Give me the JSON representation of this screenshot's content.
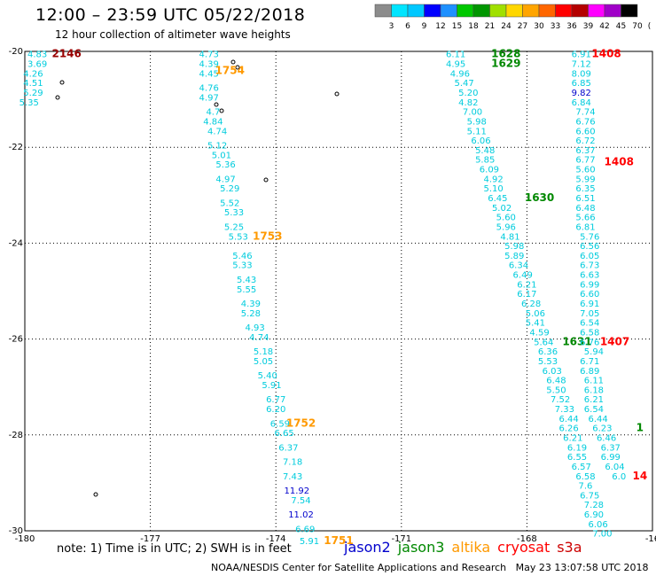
{
  "title": "12:00 – 23:59 UTC 05/22/2018",
  "subtitle": "12 hour collection of altimeter wave heights",
  "scale": {
    "colors": [
      "#8c8c8c",
      "#00e5ff",
      "#00c8ff",
      "#0000ff",
      "#1e90ff",
      "#00c800",
      "#009600",
      "#a0e000",
      "#ffd700",
      "#ffa500",
      "#ff6600",
      "#ff0000",
      "#b40000",
      "#ff00ff",
      "#a000c8",
      "#000000"
    ],
    "labels": [
      "3",
      "6",
      "9",
      "12",
      "15",
      "18",
      "21",
      "24",
      "27",
      "30",
      "33",
      "36",
      "39",
      "42",
      "45",
      "70",
      "(ft)"
    ]
  },
  "note": "note: 1) Time is in UTC; 2) SWH is in feet",
  "legend": [
    {
      "label": "jason2",
      "color": "#0000cc"
    },
    {
      "label": "jason3",
      "color": "#008800"
    },
    {
      "label": "altika",
      "color": "#ff9900"
    },
    {
      "label": "cryosat",
      "color": "#ff0000"
    },
    {
      "label": "s3a",
      "color": "#cc0000"
    }
  ],
  "footer": "NOAA/NESDIS Center for Satellite Applications and Research   May 23 13:07:58 UTC 2018",
  "chart_data": {
    "type": "scatter",
    "title": "12:00 – 23:59 UTC 05/22/2018",
    "subtitle": "12 hour collection of altimeter wave heights",
    "xlim": [
      -180,
      -165
    ],
    "ylim": [
      -30,
      -20
    ],
    "x_ticks": [
      "-180",
      "-177",
      "-174",
      "-171",
      "-168",
      "-16"
    ],
    "y_ticks": [
      "-20",
      "-22",
      "-24",
      "-26",
      "-28",
      "-30"
    ],
    "grid": true,
    "palette": {
      "cyan": "#00ccdd",
      "blue": "#0000cc",
      "green": "#008800",
      "orange": "#ff9900",
      "red": "#ff0000",
      "darkred": "#990000"
    },
    "points": [
      {
        "x": -179.7,
        "y": -20.05,
        "v": "4.83",
        "c": "cyan"
      },
      {
        "x": -179.7,
        "y": -20.25,
        "v": "3.69",
        "c": "cyan"
      },
      {
        "x": -179.8,
        "y": -20.45,
        "v": "4.26",
        "c": "cyan"
      },
      {
        "x": -179.8,
        "y": -20.65,
        "v": "4.51",
        "c": "cyan"
      },
      {
        "x": -179.8,
        "y": -20.85,
        "v": "5.29",
        "c": "cyan"
      },
      {
        "x": -179.9,
        "y": -21.05,
        "v": "5.35",
        "c": "cyan"
      },
      {
        "x": -179.0,
        "y": -20.05,
        "v": "2146",
        "c": "darkred",
        "time": true
      },
      {
        "x": -175.6,
        "y": -20.05,
        "v": "4.73",
        "c": "cyan"
      },
      {
        "x": -175.6,
        "y": -20.25,
        "v": "4.39",
        "c": "cyan"
      },
      {
        "x": -175.6,
        "y": -20.45,
        "v": "4.45",
        "c": "cyan"
      },
      {
        "x": -175.6,
        "y": -20.75,
        "v": "4.76",
        "c": "cyan"
      },
      {
        "x": -175.6,
        "y": -20.95,
        "v": "4.97",
        "c": "cyan"
      },
      {
        "x": -175.5,
        "y": -21.25,
        "v": "4.7",
        "c": "cyan"
      },
      {
        "x": -175.5,
        "y": -21.45,
        "v": "4.84",
        "c": "cyan"
      },
      {
        "x": -175.4,
        "y": -21.65,
        "v": "4.74",
        "c": "cyan"
      },
      {
        "x": -175.4,
        "y": -21.95,
        "v": "5.12",
        "c": "cyan"
      },
      {
        "x": -175.3,
        "y": -22.15,
        "v": "5.01",
        "c": "cyan"
      },
      {
        "x": -175.2,
        "y": -22.35,
        "v": "5.36",
        "c": "cyan"
      },
      {
        "x": -175.2,
        "y": -22.65,
        "v": "4.97",
        "c": "cyan"
      },
      {
        "x": -175.1,
        "y": -22.85,
        "v": "5.29",
        "c": "cyan"
      },
      {
        "x": -175.1,
        "y": -23.15,
        "v": "5.52",
        "c": "cyan"
      },
      {
        "x": -175.0,
        "y": -23.35,
        "v": "5.33",
        "c": "cyan"
      },
      {
        "x": -175.0,
        "y": -23.65,
        "v": "5.25",
        "c": "cyan"
      },
      {
        "x": -174.9,
        "y": -23.85,
        "v": "5.53",
        "c": "cyan"
      },
      {
        "x": -174.8,
        "y": -24.25,
        "v": "5.46",
        "c": "cyan"
      },
      {
        "x": -174.8,
        "y": -24.45,
        "v": "5.33",
        "c": "cyan"
      },
      {
        "x": -174.7,
        "y": -24.75,
        "v": "5.43",
        "c": "cyan"
      },
      {
        "x": -174.7,
        "y": -24.95,
        "v": "5.55",
        "c": "cyan"
      },
      {
        "x": -174.6,
        "y": -25.25,
        "v": "4.39",
        "c": "cyan"
      },
      {
        "x": -174.6,
        "y": -25.45,
        "v": "5.28",
        "c": "cyan"
      },
      {
        "x": -174.5,
        "y": -25.75,
        "v": "4.93",
        "c": "cyan"
      },
      {
        "x": -174.4,
        "y": -25.95,
        "v": "4.74",
        "c": "cyan"
      },
      {
        "x": -174.3,
        "y": -26.25,
        "v": "5.18",
        "c": "cyan"
      },
      {
        "x": -174.3,
        "y": -26.45,
        "v": "5.05",
        "c": "cyan"
      },
      {
        "x": -174.2,
        "y": -26.75,
        "v": "5.40",
        "c": "cyan"
      },
      {
        "x": -174.1,
        "y": -26.95,
        "v": "5.91",
        "c": "cyan"
      },
      {
        "x": -174.0,
        "y": -27.25,
        "v": "6.77",
        "c": "cyan"
      },
      {
        "x": -174.0,
        "y": -27.45,
        "v": "6.20",
        "c": "cyan"
      },
      {
        "x": -173.9,
        "y": -27.75,
        "v": "6.59",
        "c": "cyan"
      },
      {
        "x": -173.8,
        "y": -27.95,
        "v": "6.65",
        "c": "cyan"
      },
      {
        "x": -173.7,
        "y": -28.25,
        "v": "6.37",
        "c": "cyan"
      },
      {
        "x": -173.6,
        "y": -28.55,
        "v": "7.18",
        "c": "cyan"
      },
      {
        "x": -173.6,
        "y": -28.85,
        "v": "7.43",
        "c": "cyan"
      },
      {
        "x": -173.5,
        "y": -29.15,
        "v": "11.92",
        "c": "blue"
      },
      {
        "x": -173.4,
        "y": -29.35,
        "v": "7.54",
        "c": "cyan"
      },
      {
        "x": -173.4,
        "y": -29.65,
        "v": "11.02",
        "c": "blue"
      },
      {
        "x": -173.3,
        "y": -29.95,
        "v": "6.69",
        "c": "cyan"
      },
      {
        "x": -173.2,
        "y": -30.2,
        "v": "5.91",
        "c": "cyan"
      },
      {
        "x": -175.1,
        "y": -20.4,
        "v": "1754",
        "c": "orange",
        "time": true
      },
      {
        "x": -174.2,
        "y": -23.85,
        "v": "1753",
        "c": "orange",
        "time": true
      },
      {
        "x": -173.4,
        "y": -27.75,
        "v": "1752",
        "c": "orange",
        "time": true
      },
      {
        "x": -172.5,
        "y": -30.2,
        "v": "1751",
        "c": "orange",
        "time": true
      },
      {
        "x": -169.7,
        "y": -20.05,
        "v": "6.11",
        "c": "cyan"
      },
      {
        "x": -169.7,
        "y": -20.25,
        "v": "4.95",
        "c": "cyan"
      },
      {
        "x": -169.6,
        "y": -20.45,
        "v": "4.96",
        "c": "cyan"
      },
      {
        "x": -169.5,
        "y": -20.65,
        "v": "5.47",
        "c": "cyan"
      },
      {
        "x": -169.4,
        "y": -20.85,
        "v": "5.20",
        "c": "cyan"
      },
      {
        "x": -169.4,
        "y": -21.05,
        "v": "4.82",
        "c": "cyan"
      },
      {
        "x": -169.3,
        "y": -21.25,
        "v": "7.00",
        "c": "cyan"
      },
      {
        "x": -169.2,
        "y": -21.45,
        "v": "5.98",
        "c": "cyan"
      },
      {
        "x": -169.2,
        "y": -21.65,
        "v": "5.11",
        "c": "cyan"
      },
      {
        "x": -169.1,
        "y": -21.85,
        "v": "6.06",
        "c": "cyan"
      },
      {
        "x": -169.0,
        "y": -22.05,
        "v": "5.48",
        "c": "cyan"
      },
      {
        "x": -169.0,
        "y": -22.25,
        "v": "5.85",
        "c": "cyan"
      },
      {
        "x": -168.9,
        "y": -22.45,
        "v": "6.09",
        "c": "cyan"
      },
      {
        "x": -168.8,
        "y": -22.65,
        "v": "4.92",
        "c": "cyan"
      },
      {
        "x": -168.8,
        "y": -22.85,
        "v": "5.10",
        "c": "cyan"
      },
      {
        "x": -168.7,
        "y": -23.05,
        "v": "6.45",
        "c": "cyan"
      },
      {
        "x": -168.6,
        "y": -23.25,
        "v": "5.02",
        "c": "cyan"
      },
      {
        "x": -168.5,
        "y": -23.45,
        "v": "5.60",
        "c": "cyan"
      },
      {
        "x": -168.5,
        "y": -23.65,
        "v": "5.96",
        "c": "cyan"
      },
      {
        "x": -168.4,
        "y": -23.85,
        "v": "4.81",
        "c": "cyan"
      },
      {
        "x": -168.3,
        "y": -24.05,
        "v": "5.98",
        "c": "cyan"
      },
      {
        "x": -168.3,
        "y": -24.25,
        "v": "5.89",
        "c": "cyan"
      },
      {
        "x": -168.2,
        "y": -24.45,
        "v": "6.34",
        "c": "cyan"
      },
      {
        "x": -168.1,
        "y": -24.65,
        "v": "6.49",
        "c": "cyan"
      },
      {
        "x": -168.0,
        "y": -24.85,
        "v": "6.21",
        "c": "cyan"
      },
      {
        "x": -168.0,
        "y": -25.05,
        "v": "6.17",
        "c": "cyan"
      },
      {
        "x": -167.9,
        "y": -25.25,
        "v": "6.28",
        "c": "cyan"
      },
      {
        "x": -167.8,
        "y": -25.45,
        "v": "5.06",
        "c": "cyan"
      },
      {
        "x": -167.8,
        "y": -25.65,
        "v": "5.41",
        "c": "cyan"
      },
      {
        "x": -167.7,
        "y": -25.85,
        "v": "4.59",
        "c": "cyan"
      },
      {
        "x": -167.6,
        "y": -26.05,
        "v": "5.64",
        "c": "cyan"
      },
      {
        "x": -167.5,
        "y": -26.25,
        "v": "6.36",
        "c": "cyan"
      },
      {
        "x": -167.5,
        "y": -26.45,
        "v": "5.53",
        "c": "cyan"
      },
      {
        "x": -167.4,
        "y": -26.65,
        "v": "6.03",
        "c": "cyan"
      },
      {
        "x": -167.3,
        "y": -26.85,
        "v": "6.48",
        "c": "cyan"
      },
      {
        "x": -167.3,
        "y": -27.05,
        "v": "5.50",
        "c": "cyan"
      },
      {
        "x": -167.2,
        "y": -27.25,
        "v": "7.52",
        "c": "cyan"
      },
      {
        "x": -167.1,
        "y": -27.45,
        "v": "7.33",
        "c": "cyan"
      },
      {
        "x": -167.0,
        "y": -27.65,
        "v": "6.44",
        "c": "cyan"
      },
      {
        "x": -167.0,
        "y": -27.85,
        "v": "6.26",
        "c": "cyan"
      },
      {
        "x": -166.9,
        "y": -28.05,
        "v": "6.21",
        "c": "cyan"
      },
      {
        "x": -166.8,
        "y": -28.25,
        "v": "6.19",
        "c": "cyan"
      },
      {
        "x": -166.8,
        "y": -28.45,
        "v": "6.55",
        "c": "cyan"
      },
      {
        "x": -166.7,
        "y": -28.65,
        "v": "6.57",
        "c": "cyan"
      },
      {
        "x": -166.6,
        "y": -28.85,
        "v": "6.58",
        "c": "cyan"
      },
      {
        "x": -166.6,
        "y": -29.05,
        "v": "7.6",
        "c": "cyan"
      },
      {
        "x": -166.5,
        "y": -29.25,
        "v": "6.75",
        "c": "cyan"
      },
      {
        "x": -166.4,
        "y": -29.45,
        "v": "7.28",
        "c": "cyan"
      },
      {
        "x": -166.4,
        "y": -29.65,
        "v": "6.90",
        "c": "cyan"
      },
      {
        "x": -166.3,
        "y": -29.85,
        "v": "6.06",
        "c": "cyan"
      },
      {
        "x": -166.2,
        "y": -30.05,
        "v": "7.00",
        "c": "cyan"
      },
      {
        "x": -168.5,
        "y": -20.05,
        "v": "1628",
        "c": "green",
        "time": true
      },
      {
        "x": -168.5,
        "y": -20.25,
        "v": "1629",
        "c": "green",
        "time": true
      },
      {
        "x": -167.7,
        "y": -23.05,
        "v": "1630",
        "c": "green",
        "time": true
      },
      {
        "x": -166.8,
        "y": -26.05,
        "v": "1631",
        "c": "green",
        "time": true
      },
      {
        "x": -166.7,
        "y": -20.05,
        "v": "6.91",
        "c": "cyan"
      },
      {
        "x": -166.7,
        "y": -20.25,
        "v": "7.12",
        "c": "cyan"
      },
      {
        "x": -166.7,
        "y": -20.45,
        "v": "8.09",
        "c": "cyan"
      },
      {
        "x": -166.7,
        "y": -20.65,
        "v": "6.85",
        "c": "cyan"
      },
      {
        "x": -166.7,
        "y": -20.85,
        "v": "9.82",
        "c": "blue"
      },
      {
        "x": -166.7,
        "y": -21.05,
        "v": "6.84",
        "c": "cyan"
      },
      {
        "x": -166.6,
        "y": -21.25,
        "v": "7.74",
        "c": "cyan"
      },
      {
        "x": -166.6,
        "y": -21.45,
        "v": "6.76",
        "c": "cyan"
      },
      {
        "x": -166.6,
        "y": -21.65,
        "v": "6.60",
        "c": "cyan"
      },
      {
        "x": -166.6,
        "y": -21.85,
        "v": "6.72",
        "c": "cyan"
      },
      {
        "x": -166.6,
        "y": -22.05,
        "v": "6.37",
        "c": "cyan"
      },
      {
        "x": -166.6,
        "y": -22.25,
        "v": "6.77",
        "c": "cyan"
      },
      {
        "x": -166.6,
        "y": -22.45,
        "v": "5.60",
        "c": "cyan"
      },
      {
        "x": -166.6,
        "y": -22.65,
        "v": "5.99",
        "c": "cyan"
      },
      {
        "x": -166.6,
        "y": -22.85,
        "v": "6.35",
        "c": "cyan"
      },
      {
        "x": -166.6,
        "y": -23.05,
        "v": "6.51",
        "c": "cyan"
      },
      {
        "x": -166.6,
        "y": -23.25,
        "v": "6.48",
        "c": "cyan"
      },
      {
        "x": -166.6,
        "y": -23.45,
        "v": "5.66",
        "c": "cyan"
      },
      {
        "x": -166.6,
        "y": -23.65,
        "v": "6.81",
        "c": "cyan"
      },
      {
        "x": -166.5,
        "y": -23.85,
        "v": "5.76",
        "c": "cyan"
      },
      {
        "x": -166.5,
        "y": -24.05,
        "v": "6.56",
        "c": "cyan"
      },
      {
        "x": -166.5,
        "y": -24.25,
        "v": "6.05",
        "c": "cyan"
      },
      {
        "x": -166.5,
        "y": -24.45,
        "v": "6.73",
        "c": "cyan"
      },
      {
        "x": -166.5,
        "y": -24.65,
        "v": "6.63",
        "c": "cyan"
      },
      {
        "x": -166.5,
        "y": -24.85,
        "v": "6.99",
        "c": "cyan"
      },
      {
        "x": -166.5,
        "y": -25.05,
        "v": "6.60",
        "c": "cyan"
      },
      {
        "x": -166.5,
        "y": -25.25,
        "v": "6.91",
        "c": "cyan"
      },
      {
        "x": -166.5,
        "y": -25.45,
        "v": "7.05",
        "c": "cyan"
      },
      {
        "x": -166.5,
        "y": -25.65,
        "v": "6.54",
        "c": "cyan"
      },
      {
        "x": -166.5,
        "y": -25.85,
        "v": "6.58",
        "c": "cyan"
      },
      {
        "x": -166.5,
        "y": -26.05,
        "v": "6.76",
        "c": "cyan"
      },
      {
        "x": -166.4,
        "y": -26.25,
        "v": "5.94",
        "c": "cyan"
      },
      {
        "x": -166.5,
        "y": -26.45,
        "v": "6.71",
        "c": "cyan"
      },
      {
        "x": -166.5,
        "y": -26.65,
        "v": "6.89",
        "c": "cyan"
      },
      {
        "x": -166.4,
        "y": -26.85,
        "v": "6.11",
        "c": "cyan"
      },
      {
        "x": -166.4,
        "y": -27.05,
        "v": "6.18",
        "c": "cyan"
      },
      {
        "x": -166.4,
        "y": -27.25,
        "v": "6.21",
        "c": "cyan"
      },
      {
        "x": -166.4,
        "y": -27.45,
        "v": "6.54",
        "c": "cyan"
      },
      {
        "x": -166.3,
        "y": -27.65,
        "v": "6.44",
        "c": "cyan"
      },
      {
        "x": -166.2,
        "y": -27.85,
        "v": "6.23",
        "c": "cyan"
      },
      {
        "x": -166.1,
        "y": -28.05,
        "v": "6.46",
        "c": "cyan"
      },
      {
        "x": -166.0,
        "y": -28.25,
        "v": "6.37",
        "c": "cyan"
      },
      {
        "x": -166.0,
        "y": -28.45,
        "v": "6.99",
        "c": "cyan"
      },
      {
        "x": -165.9,
        "y": -28.65,
        "v": "6.04",
        "c": "cyan"
      },
      {
        "x": -165.8,
        "y": -28.85,
        "v": "6.0",
        "c": "cyan"
      },
      {
        "x": -166.1,
        "y": -20.05,
        "v": "1408",
        "c": "red",
        "time": true
      },
      {
        "x": -165.8,
        "y": -22.3,
        "v": "1408",
        "c": "red",
        "time": true
      },
      {
        "x": -165.9,
        "y": -26.05,
        "v": "1407",
        "c": "red",
        "time": true
      },
      {
        "x": -165.3,
        "y": -28.85,
        "v": "14",
        "c": "red",
        "time": true
      },
      {
        "x": -165.3,
        "y": -27.85,
        "v": "1",
        "c": "green",
        "time": true
      }
    ]
  }
}
